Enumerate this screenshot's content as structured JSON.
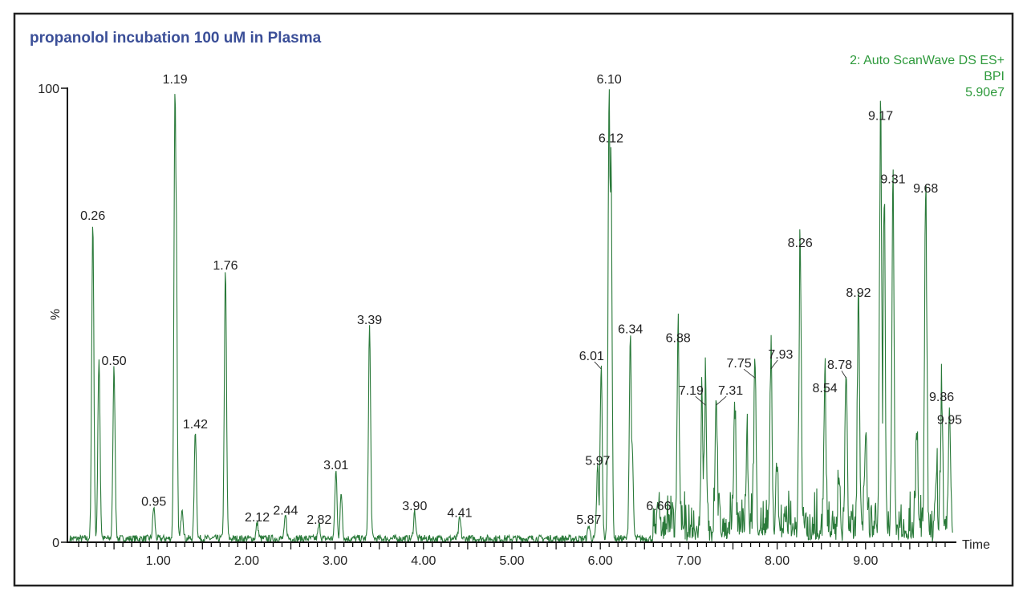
{
  "chart_data": {
    "type": "line",
    "title": "propanolol incubation 100 uM in Plasma",
    "legend": [
      "2: Auto ScanWave DS ES+",
      "BPI",
      "5.90e7"
    ],
    "legend_placement": "top-right",
    "xlabel": "Time",
    "ylabel": "%",
    "xlim": [
      0,
      10.0
    ],
    "ylim": [
      0,
      100
    ],
    "x_ticks": [
      "1.00",
      "2.00",
      "3.00",
      "4.00",
      "5.00",
      "6.00",
      "7.00",
      "8.00",
      "9.00"
    ],
    "y_ticks": [
      "0",
      "100"
    ],
    "grid": false,
    "line_color": "#2a7a3a",
    "labeled_peaks": [
      {
        "label": "0.26",
        "x": 0.26,
        "y": 70
      },
      {
        "label": "0.50",
        "x": 0.5,
        "y": 38
      },
      {
        "label": "0.95",
        "x": 0.95,
        "y": 7
      },
      {
        "label": "1.19",
        "x": 1.19,
        "y": 100
      },
      {
        "label": "1.42",
        "x": 1.42,
        "y": 24
      },
      {
        "label": "1.76",
        "x": 1.76,
        "y": 59
      },
      {
        "label": "2.12",
        "x": 2.12,
        "y": 3.5
      },
      {
        "label": "2.44",
        "x": 2.44,
        "y": 5
      },
      {
        "label": "2.82",
        "x": 2.82,
        "y": 3
      },
      {
        "label": "3.01",
        "x": 3.01,
        "y": 15
      },
      {
        "label": "3.39",
        "x": 3.39,
        "y": 47
      },
      {
        "label": "3.90",
        "x": 3.9,
        "y": 6
      },
      {
        "label": "4.41",
        "x": 4.41,
        "y": 4.5
      },
      {
        "label": "5.87",
        "x": 5.87,
        "y": 3
      },
      {
        "label": "5.97",
        "x": 5.97,
        "y": 16
      },
      {
        "label": "6.01",
        "x": 6.01,
        "y": 38
      },
      {
        "label": "6.10",
        "x": 6.1,
        "y": 100
      },
      {
        "label": "6.12",
        "x": 6.12,
        "y": 87
      },
      {
        "label": "6.34",
        "x": 6.34,
        "y": 45
      },
      {
        "label": "6.66",
        "x": 6.66,
        "y": 6
      },
      {
        "label": "6.88",
        "x": 6.88,
        "y": 43
      },
      {
        "label": "7.19",
        "x": 7.19,
        "y": 30
      },
      {
        "label": "7.31",
        "x": 7.31,
        "y": 30
      },
      {
        "label": "7.75",
        "x": 7.75,
        "y": 36
      },
      {
        "label": "7.93",
        "x": 7.93,
        "y": 38
      },
      {
        "label": "8.26",
        "x": 8.26,
        "y": 64
      },
      {
        "label": "8.54",
        "x": 8.54,
        "y": 32
      },
      {
        "label": "8.78",
        "x": 8.78,
        "y": 36
      },
      {
        "label": "8.92",
        "x": 8.92,
        "y": 53
      },
      {
        "label": "9.17",
        "x": 9.17,
        "y": 92
      },
      {
        "label": "9.31",
        "x": 9.31,
        "y": 78
      },
      {
        "label": "9.68",
        "x": 9.68,
        "y": 76
      },
      {
        "label": "9.86",
        "x": 9.86,
        "y": 30
      },
      {
        "label": "9.95",
        "x": 9.95,
        "y": 25
      }
    ],
    "unlabeled_peaks": [
      {
        "x": 0.33,
        "y": 40
      },
      {
        "x": 1.2,
        "y": 80
      },
      {
        "x": 1.27,
        "y": 7
      },
      {
        "x": 3.07,
        "y": 10
      },
      {
        "x": 6.36,
        "y": 20
      },
      {
        "x": 7.15,
        "y": 27
      },
      {
        "x": 7.52,
        "y": 28
      },
      {
        "x": 7.66,
        "y": 18
      },
      {
        "x": 8.0,
        "y": 14
      },
      {
        "x": 8.7,
        "y": 12
      },
      {
        "x": 9.0,
        "y": 20
      },
      {
        "x": 9.21,
        "y": 72
      },
      {
        "x": 9.58,
        "y": 21
      },
      {
        "x": 9.8,
        "y": 12
      }
    ]
  }
}
